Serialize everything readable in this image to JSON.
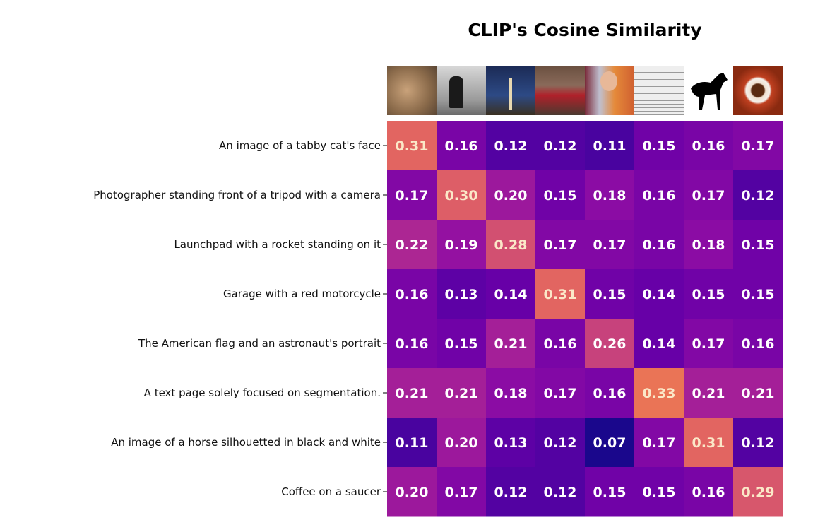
{
  "chart_data": {
    "type": "heatmap",
    "title": "CLIP's Cosine Similarity",
    "colormap": "plasma",
    "color_range": [
      0.06,
      0.4
    ],
    "columns": [
      "cat",
      "camera man",
      "rocket",
      "motorcycle",
      "astronaut",
      "text page",
      "horse",
      "coffee"
    ],
    "rows": [
      "An image of a tabby cat's face",
      "Photographer standing front of a tripod with a camera",
      "Launchpad with a rocket standing on it",
      "Garage with a red motorcycle",
      "The American flag and an astronaut's portrait",
      "A text page solely focused on segmentation.",
      "An image of a horse silhouetted in black and white",
      "Coffee on a saucer"
    ],
    "values": [
      [
        0.31,
        0.16,
        0.12,
        0.12,
        0.11,
        0.15,
        0.16,
        0.17
      ],
      [
        0.17,
        0.3,
        0.2,
        0.15,
        0.18,
        0.16,
        0.17,
        0.12
      ],
      [
        0.22,
        0.19,
        0.28,
        0.17,
        0.17,
        0.16,
        0.18,
        0.15
      ],
      [
        0.16,
        0.13,
        0.14,
        0.31,
        0.15,
        0.14,
        0.15,
        0.15
      ],
      [
        0.16,
        0.15,
        0.21,
        0.16,
        0.26,
        0.14,
        0.17,
        0.16
      ],
      [
        0.21,
        0.21,
        0.18,
        0.17,
        0.16,
        0.33,
        0.21,
        0.21
      ],
      [
        0.11,
        0.2,
        0.13,
        0.12,
        0.07,
        0.17,
        0.31,
        0.12
      ],
      [
        0.2,
        0.17,
        0.12,
        0.12,
        0.15,
        0.15,
        0.16,
        0.29
      ]
    ]
  }
}
